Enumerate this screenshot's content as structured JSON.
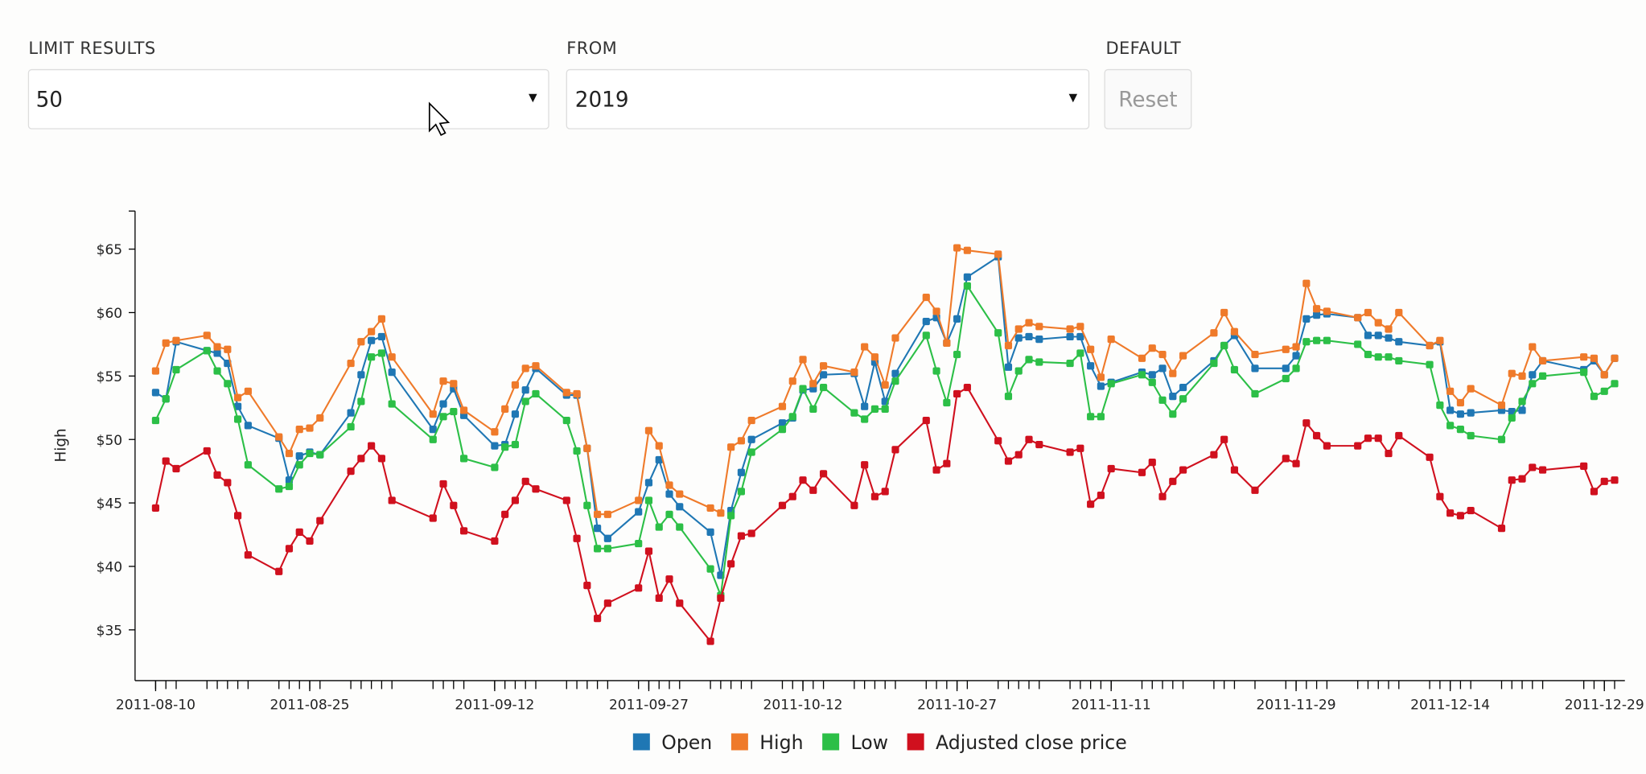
{
  "controls": {
    "limit_label": "LIMIT RESULTS",
    "limit_value": "50",
    "from_label": "FROM",
    "from_value": "2019",
    "default_label": "DEFAULT",
    "reset_button": "Reset"
  },
  "chart_data": {
    "type": "line",
    "y_label": "High",
    "x": [
      "2011-08-10",
      "2011-08-11",
      "2011-08-12",
      "2011-08-15",
      "2011-08-16",
      "2011-08-17",
      "2011-08-18",
      "2011-08-19",
      "2011-08-22",
      "2011-08-23",
      "2011-08-24",
      "2011-08-25",
      "2011-08-26",
      "2011-08-29",
      "2011-08-30",
      "2011-08-31",
      "2011-09-01",
      "2011-09-02",
      "2011-09-06",
      "2011-09-07",
      "2011-09-08",
      "2011-09-09",
      "2011-09-12",
      "2011-09-13",
      "2011-09-14",
      "2011-09-15",
      "2011-09-16",
      "2011-09-19",
      "2011-09-20",
      "2011-09-21",
      "2011-09-22",
      "2011-09-23",
      "2011-09-26",
      "2011-09-27",
      "2011-09-28",
      "2011-09-29",
      "2011-09-30",
      "2011-10-03",
      "2011-10-04",
      "2011-10-05",
      "2011-10-06",
      "2011-10-07",
      "2011-10-10",
      "2011-10-11",
      "2011-10-12",
      "2011-10-13",
      "2011-10-14",
      "2011-10-17",
      "2011-10-18",
      "2011-10-19",
      "2011-10-20",
      "2011-10-21",
      "2011-10-24",
      "2011-10-25",
      "2011-10-26",
      "2011-10-27",
      "2011-10-28",
      "2011-10-31",
      "2011-11-01",
      "2011-11-02",
      "2011-11-03",
      "2011-11-04",
      "2011-11-07",
      "2011-11-08",
      "2011-11-09",
      "2011-11-10",
      "2011-11-11",
      "2011-11-14",
      "2011-11-15",
      "2011-11-16",
      "2011-11-17",
      "2011-11-18",
      "2011-11-21",
      "2011-11-22",
      "2011-11-23",
      "2011-11-25",
      "2011-11-28",
      "2011-11-29",
      "2011-11-30",
      "2011-12-01",
      "2011-12-02",
      "2011-12-05",
      "2011-12-06",
      "2011-12-07",
      "2011-12-08",
      "2011-12-09",
      "2011-12-12",
      "2011-12-13",
      "2011-12-14",
      "2011-12-15",
      "2011-12-16",
      "2011-12-19",
      "2011-12-20",
      "2011-12-21",
      "2011-12-22",
      "2011-12-23",
      "2011-12-27",
      "2011-12-28",
      "2011-12-29",
      "2011-12-30"
    ],
    "series": [
      {
        "name": "Open",
        "color": "#1f77b4",
        "values": [
          53.7,
          53.2,
          57.7,
          57.0,
          56.8,
          56.0,
          52.6,
          51.1,
          50.1,
          46.8,
          48.7,
          49.0,
          48.8,
          52.1,
          55.1,
          57.8,
          58.1,
          55.3,
          50.8,
          52.8,
          54.0,
          51.9,
          49.5,
          49.6,
          52.0,
          53.9,
          55.6,
          53.5,
          53.5,
          49.3,
          43.0,
          42.2,
          44.3,
          46.6,
          48.4,
          45.7,
          44.7,
          42.7,
          39.3,
          44.4,
          47.4,
          50.0,
          51.3,
          51.7,
          53.9,
          54.0,
          55.1,
          55.2,
          52.6,
          56.1,
          53.0,
          55.2,
          59.3,
          59.6,
          57.6,
          59.5,
          62.8,
          64.4,
          55.7,
          58.0,
          58.1,
          57.9,
          58.1,
          58.1,
          55.8,
          54.2,
          54.5,
          55.3,
          55.1,
          55.6,
          53.4,
          54.1,
          56.2,
          57.4,
          58.2,
          55.6,
          55.6,
          56.6,
          59.5,
          59.8,
          59.9,
          59.6,
          58.2,
          58.2,
          58.0,
          57.7,
          57.4,
          57.7,
          52.3,
          52.0,
          52.1,
          52.3,
          52.2,
          52.3,
          55.1,
          56.2,
          55.5,
          56.2,
          55.1,
          56.4
        ]
      },
      {
        "name": "High",
        "color": "#ef7a2a",
        "values": [
          55.4,
          57.6,
          57.8,
          58.2,
          57.3,
          57.1,
          53.3,
          53.8,
          50.2,
          48.9,
          50.8,
          50.9,
          51.7,
          56.0,
          57.7,
          58.5,
          59.5,
          56.5,
          52.0,
          54.6,
          54.4,
          52.3,
          50.6,
          52.4,
          54.3,
          55.6,
          55.8,
          53.7,
          53.6,
          49.3,
          44.1,
          44.1,
          45.2,
          50.7,
          49.5,
          46.4,
          45.7,
          44.6,
          44.2,
          49.4,
          49.9,
          51.5,
          52.6,
          54.6,
          56.3,
          54.4,
          55.8,
          55.3,
          57.3,
          56.5,
          54.3,
          58.0,
          61.2,
          60.1,
          57.6,
          65.1,
          64.9,
          64.6,
          57.4,
          58.7,
          59.2,
          58.9,
          58.7,
          58.9,
          57.1,
          54.9,
          57.9,
          56.4,
          57.2,
          56.7,
          55.2,
          56.6,
          58.4,
          60.0,
          58.5,
          56.7,
          57.1,
          57.3,
          62.3,
          60.3,
          60.1,
          59.6,
          60.0,
          59.2,
          58.7,
          60.0,
          57.4,
          57.8,
          53.8,
          52.9,
          54.0,
          52.7,
          55.2,
          55.0,
          57.3,
          56.2,
          56.5,
          56.4,
          55.1,
          56.4
        ]
      },
      {
        "name": "Low",
        "color": "#2cbf47",
        "values": [
          51.5,
          53.2,
          55.5,
          57.0,
          55.4,
          54.4,
          51.6,
          48.0,
          46.1,
          46.3,
          48.0,
          48.9,
          48.8,
          51.0,
          53.0,
          56.5,
          56.8,
          52.8,
          50.0,
          51.8,
          52.2,
          48.5,
          47.8,
          49.4,
          49.6,
          53.0,
          53.6,
          51.5,
          49.1,
          44.8,
          41.4,
          41.4,
          41.8,
          45.2,
          43.1,
          44.1,
          43.1,
          39.8,
          37.7,
          44.0,
          45.9,
          49.0,
          50.8,
          51.8,
          54.0,
          52.4,
          54.1,
          52.1,
          51.6,
          52.4,
          52.4,
          54.6,
          58.2,
          55.4,
          52.9,
          56.7,
          62.1,
          58.4,
          53.4,
          55.4,
          56.3,
          56.1,
          56.0,
          56.8,
          51.8,
          51.8,
          54.4,
          55.1,
          54.5,
          53.1,
          52.0,
          53.2,
          56.0,
          57.4,
          55.5,
          53.6,
          54.8,
          55.6,
          57.7,
          57.8,
          57.8,
          57.5,
          56.7,
          56.5,
          56.5,
          56.2,
          55.9,
          52.7,
          51.1,
          50.8,
          50.3,
          50.0,
          51.7,
          53.0,
          54.4,
          55.0,
          55.3,
          53.4,
          53.8,
          54.4
        ]
      },
      {
        "name": "Adjusted close price",
        "color": "#d0101e",
        "values": [
          44.6,
          48.3,
          47.7,
          49.1,
          47.2,
          46.6,
          44.0,
          40.9,
          39.6,
          41.4,
          42.7,
          42.0,
          43.6,
          47.5,
          48.5,
          49.5,
          48.5,
          45.2,
          43.8,
          46.5,
          44.8,
          42.8,
          42.0,
          44.1,
          45.2,
          46.7,
          46.1,
          45.2,
          42.2,
          38.5,
          35.9,
          37.1,
          38.3,
          41.2,
          37.5,
          39.0,
          37.1,
          34.1,
          37.5,
          40.2,
          42.4,
          42.6,
          44.8,
          45.5,
          46.8,
          46.0,
          47.3,
          44.8,
          48.0,
          45.5,
          45.9,
          49.2,
          51.5,
          47.6,
          48.1,
          53.6,
          54.1,
          49.9,
          48.3,
          48.8,
          50.0,
          49.6,
          49.0,
          49.3,
          44.9,
          45.6,
          47.7,
          47.4,
          48.2,
          45.5,
          46.7,
          47.6,
          48.8,
          50.0,
          47.6,
          46.0,
          48.5,
          48.1,
          51.3,
          50.3,
          49.5,
          49.5,
          50.1,
          50.1,
          48.9,
          50.3,
          48.6,
          45.5,
          44.2,
          44.0,
          44.4,
          43.0,
          46.8,
          46.9,
          47.8,
          47.6,
          47.9,
          45.9,
          46.7,
          46.8
        ]
      }
    ],
    "xlim": [
      "2011-08-08",
      "2011-12-31"
    ],
    "xticks": [
      "2011-08-10",
      "2011-08-25",
      "2011-09-12",
      "2011-09-27",
      "2011-10-12",
      "2011-10-27",
      "2011-11-11",
      "2011-11-29",
      "2011-12-14",
      "2011-12-29"
    ],
    "ylim": [
      31,
      68
    ],
    "yticks": [
      {
        "value": 35,
        "label": "$35"
      },
      {
        "value": 40,
        "label": "$40"
      },
      {
        "value": 45,
        "label": "$45"
      },
      {
        "value": 50,
        "label": "$50"
      },
      {
        "value": 55,
        "label": "$55"
      },
      {
        "value": 60,
        "label": "$60"
      },
      {
        "value": 65,
        "label": "$65"
      }
    ],
    "legend": "bottom"
  }
}
